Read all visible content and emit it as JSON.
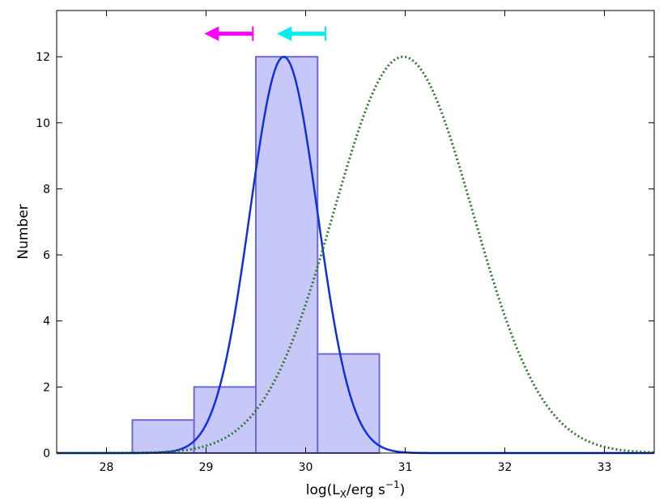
{
  "chart_data": {
    "type": "histogram",
    "xlabel": "log(L",
    "xlabel_sub": "X",
    "xlabel_rest": "/erg s",
    "xlabel_sup": "−1",
    "xlabel_close": ")",
    "ylabel": "Number",
    "xlim": [
      27.5,
      33.5
    ],
    "ylim": [
      0,
      13.4
    ],
    "xticks": [
      28,
      29,
      30,
      31,
      32,
      33
    ],
    "yticks": [
      0,
      2,
      4,
      6,
      8,
      10,
      12
    ],
    "grid": false,
    "histogram": {
      "color": "#c8c8f8",
      "edge_color": "#6a6ad8",
      "bins": [
        {
          "x0": 28.26,
          "x1": 28.88,
          "count": 1
        },
        {
          "x0": 28.88,
          "x1": 29.5,
          "count": 2
        },
        {
          "x0": 29.5,
          "x1": 30.12,
          "count": 12
        },
        {
          "x0": 30.12,
          "x1": 30.74,
          "count": 3
        }
      ]
    },
    "curves": [
      {
        "style": "solid",
        "color": "#1030e0",
        "shape": "gaussian",
        "mean": 29.78,
        "sigma": 0.34,
        "peak": 12
      },
      {
        "style": "dotted",
        "color": "#2a7a2a",
        "shape": "gaussian",
        "mean": 30.98,
        "sigma": 0.7,
        "peak": 12
      }
    ],
    "upper_limits": [
      {
        "value": 29.47,
        "y": 12.7,
        "color": "#ff00ff"
      },
      {
        "value": 30.2,
        "y": 12.7,
        "color": "#00f0f0"
      }
    ]
  }
}
